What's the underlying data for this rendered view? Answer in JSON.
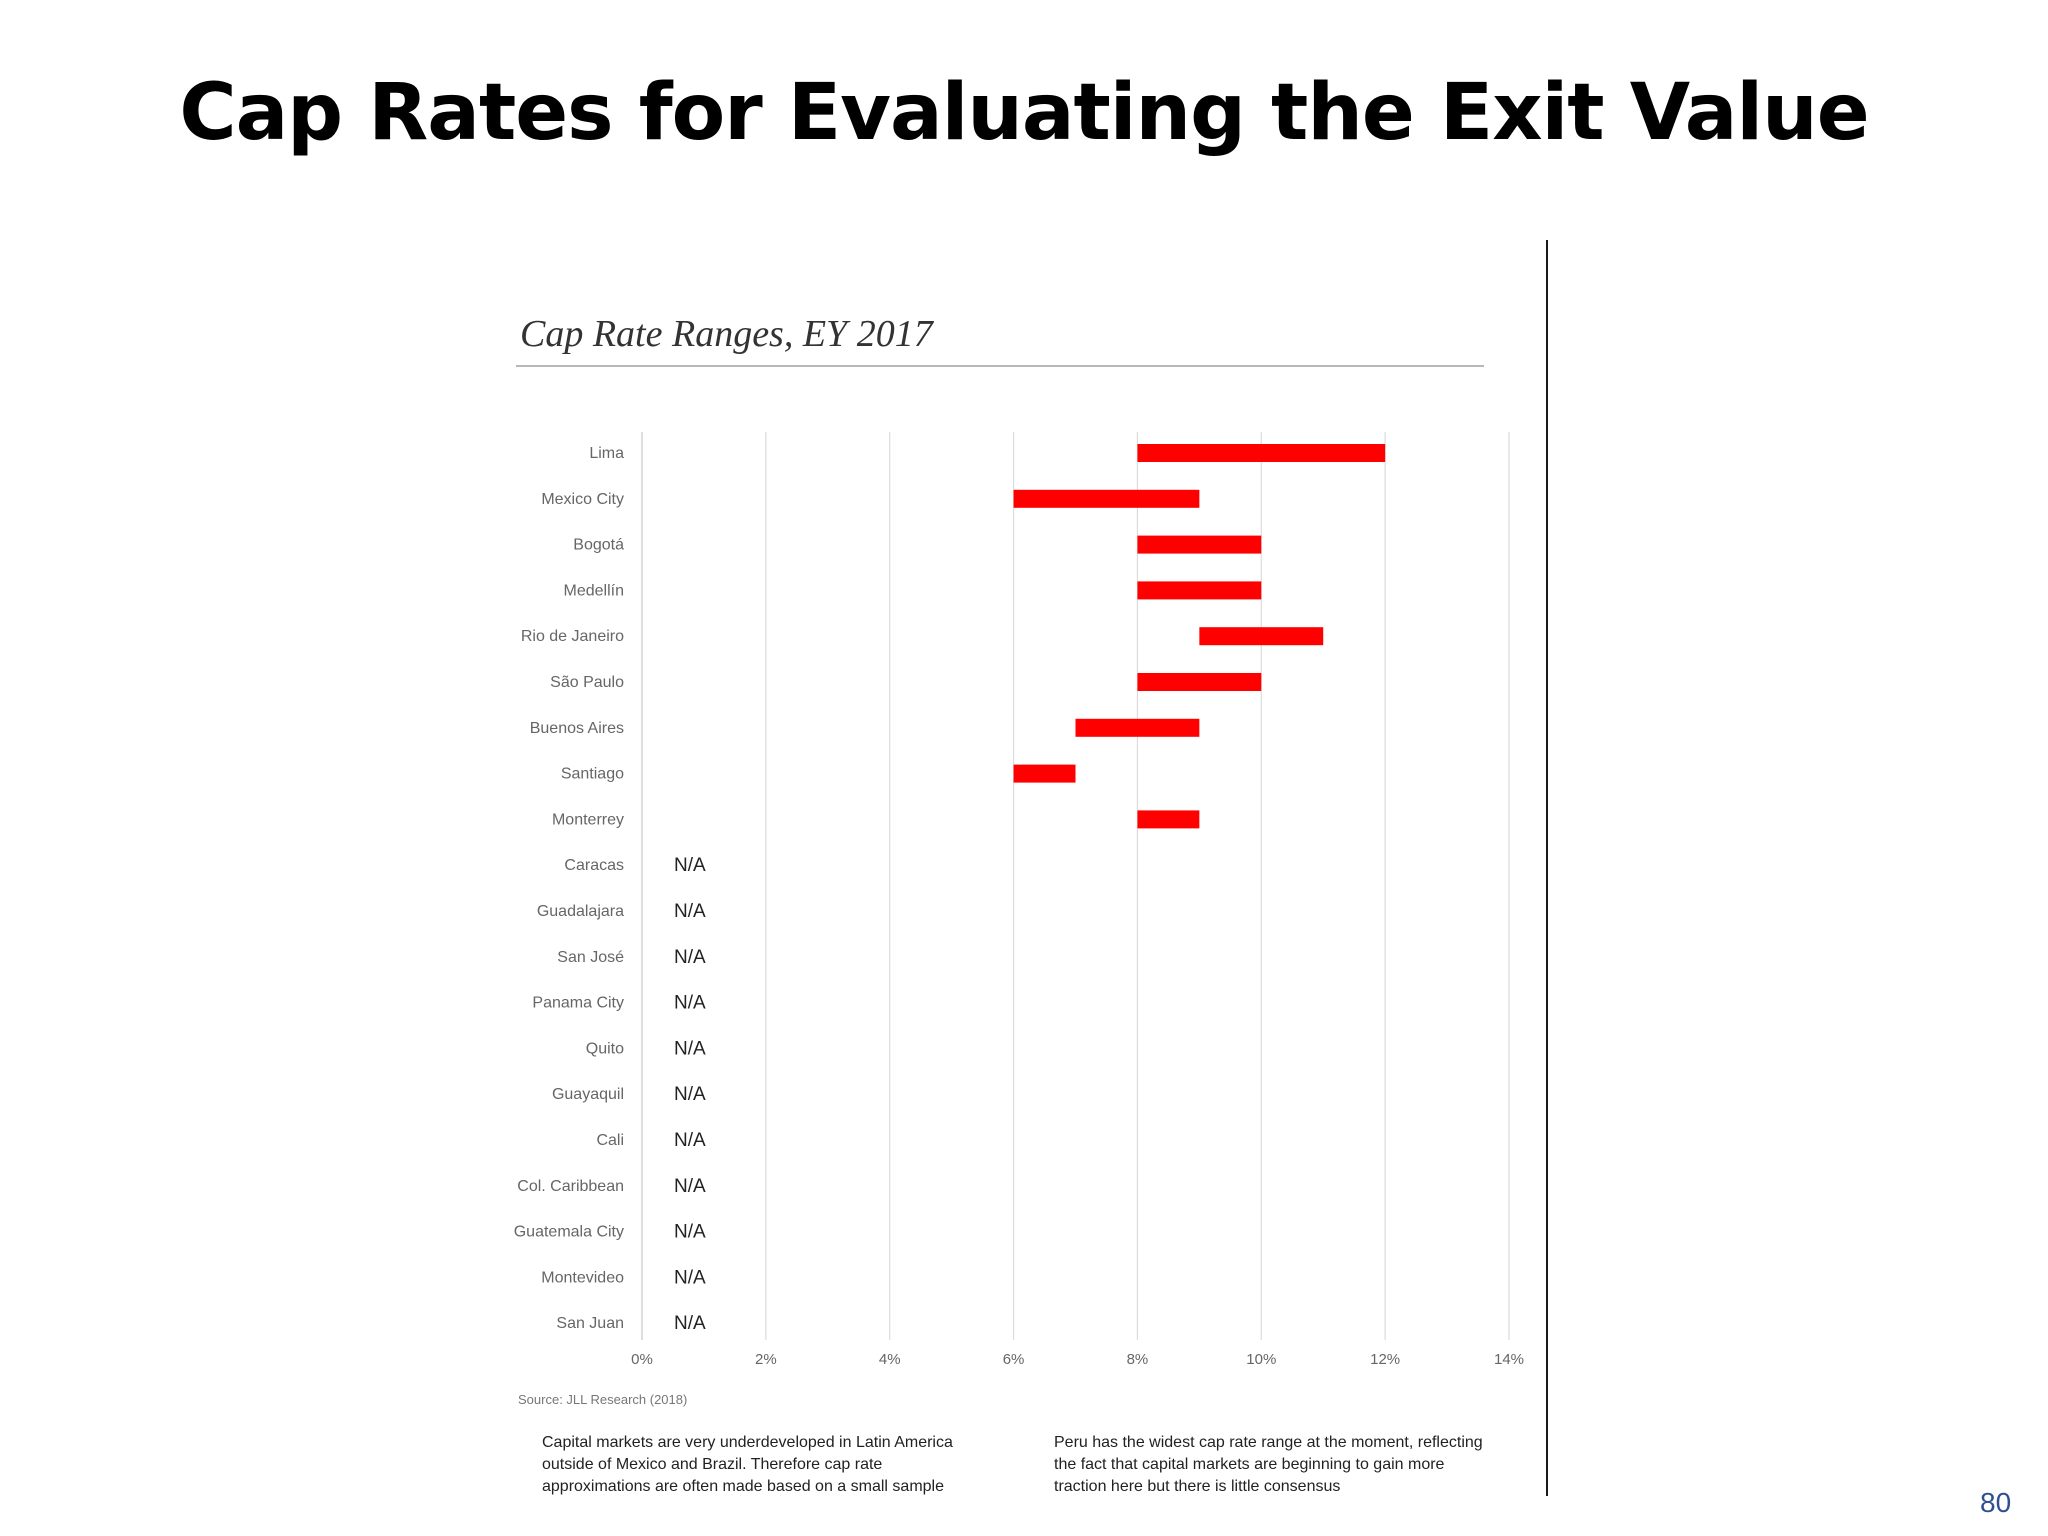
{
  "slide": {
    "title": "Cap Rates for Evaluating the Exit Value",
    "page_number": "80"
  },
  "chart_data": {
    "type": "bar",
    "title": "Cap Rate Ranges, EY 2017",
    "source": "Source: JLL Research (2018)",
    "orientation": "horizontal-range",
    "categories": [
      "Lima",
      "Mexico City",
      "Bogotá",
      "Medellín",
      "Rio de Janeiro",
      "São Paulo",
      "Buenos Aires",
      "Santiago",
      "Monterrey",
      "Caracas",
      "Guadalajara",
      "San José",
      "Panama City",
      "Quito",
      "Guayaquil",
      "Cali",
      "Col. Caribbean",
      "Guatemala City",
      "Montevideo",
      "San Juan"
    ],
    "ranges": [
      [
        8,
        12
      ],
      [
        6,
        9
      ],
      [
        8,
        10
      ],
      [
        8,
        10
      ],
      [
        9,
        11
      ],
      [
        8,
        10
      ],
      [
        7,
        9
      ],
      [
        6,
        7
      ],
      [
        8,
        9
      ],
      null,
      null,
      null,
      null,
      null,
      null,
      null,
      null,
      null,
      null,
      null
    ],
    "na_label": "N/A",
    "x_ticks": [
      "0%",
      "2%",
      "4%",
      "6%",
      "8%",
      "10%",
      "12%",
      "14%"
    ],
    "xlim": [
      0,
      14
    ],
    "grid": true,
    "bar_color": "#ff0000"
  },
  "notes": [
    {
      "bullet": "•",
      "text": "Capital markets are very underdeveloped in Latin America outside of Mexico and Brazil. Therefore cap rate approximations are often made based on a small sample"
    },
    {
      "bullet": "•",
      "text": "Peru has the widest cap rate range at the moment, reflecting the fact that capital markets are beginning to gain more traction here but there is little consensus"
    }
  ]
}
